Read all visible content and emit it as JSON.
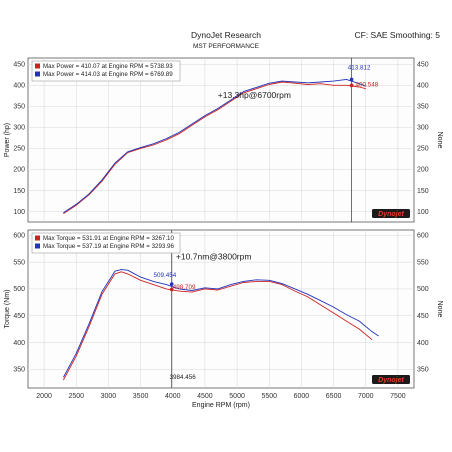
{
  "header": {
    "title": "DynoJet Research",
    "subtitle": "MST PERFORMANCE",
    "right": "CF: SAE Smoothing: 5"
  },
  "chart_data": [
    {
      "type": "line",
      "ylabel": "Power (hp)",
      "ylabel_right": "None",
      "xlim": [
        1750,
        7750
      ],
      "ylim": [
        75,
        465
      ],
      "yticks": [
        100,
        150,
        200,
        250,
        300,
        350,
        400,
        450
      ],
      "legend": [
        {
          "text": "Max Power = 410.07 at Engine RPM = 5738.93",
          "color": "#cc2222"
        },
        {
          "text": "Max Power = 414.03 at Engine RPM = 6769.89",
          "color": "#2233bb"
        }
      ],
      "series": [
        {
          "color": "#cc2222",
          "x": [
            2300,
            2500,
            2700,
            2900,
            3100,
            3300,
            3500,
            3700,
            3900,
            4100,
            4300,
            4500,
            4700,
            4900,
            5100,
            5300,
            5500,
            5700,
            5900,
            6100,
            6300,
            6500,
            6700,
            6900,
            7000
          ],
          "y": [
            95,
            115,
            140,
            172,
            212,
            240,
            250,
            258,
            270,
            285,
            305,
            325,
            342,
            362,
            382,
            392,
            402,
            408,
            405,
            402,
            404,
            400,
            400,
            396,
            392
          ]
        },
        {
          "color": "#2233bb",
          "x": [
            2300,
            2500,
            2700,
            2900,
            3100,
            3300,
            3500,
            3700,
            3900,
            4100,
            4300,
            4500,
            4700,
            4900,
            5100,
            5300,
            5500,
            5700,
            5900,
            6100,
            6300,
            6500,
            6700,
            6900,
            7000
          ],
          "y": [
            97,
            117,
            142,
            175,
            215,
            242,
            252,
            261,
            273,
            288,
            308,
            328,
            345,
            365,
            385,
            395,
            405,
            410,
            408,
            406,
            408,
            410,
            414,
            404,
            398
          ]
        }
      ],
      "annotations": [
        {
          "text": "+13.3hp@6700rpm",
          "x": 4700,
          "y": 370
        },
        {
          "text": "413.812",
          "x": 6720,
          "y": 438,
          "color": "#2233bb"
        },
        {
          "text": "400.548",
          "x": 6840,
          "y": 397,
          "color": "#cc2222"
        }
      ],
      "marker_x": 6780,
      "marker_values": [
        {
          "y": 414,
          "color": "#2233bb"
        },
        {
          "y": 400,
          "color": "#cc2222"
        }
      ],
      "logo": "Dynojet"
    },
    {
      "type": "line",
      "ylabel": "Torque (Nm)",
      "ylabel_right": "None",
      "xlabel": "Engine RPM (rpm)",
      "xlim": [
        1750,
        7750
      ],
      "xticks": [
        2000,
        2500,
        3000,
        3500,
        4000,
        4500,
        5000,
        5500,
        6000,
        6500,
        7000,
        7500
      ],
      "ylim": [
        315,
        610
      ],
      "yticks": [
        350,
        400,
        450,
        500,
        550,
        600
      ],
      "legend": [
        {
          "text": "Max Torque = 531.91 at Engine RPM = 3267.10",
          "color": "#cc2222"
        },
        {
          "text": "Max Torque = 537.19 at Engine RPM = 3293.96",
          "color": "#2233bb"
        }
      ],
      "series": [
        {
          "color": "#cc2222",
          "x": [
            2300,
            2500,
            2700,
            2900,
            3100,
            3200,
            3300,
            3500,
            3700,
            3900,
            4100,
            4300,
            4500,
            4700,
            4900,
            5100,
            5300,
            5500,
            5700,
            5900,
            6100,
            6300,
            6500,
            6700,
            6900,
            7100
          ],
          "y": [
            330,
            375,
            430,
            490,
            528,
            532,
            528,
            516,
            508,
            500,
            496,
            494,
            500,
            498,
            505,
            512,
            514,
            514,
            508,
            496,
            485,
            470,
            455,
            440,
            425,
            405
          ]
        },
        {
          "color": "#2233bb",
          "x": [
            2300,
            2500,
            2700,
            2900,
            3100,
            3200,
            3300,
            3500,
            3700,
            3900,
            4100,
            4300,
            4500,
            4700,
            4900,
            5100,
            5300,
            5500,
            5700,
            5900,
            6100,
            6300,
            6500,
            6700,
            6900,
            7100,
            7200
          ],
          "y": [
            335,
            380,
            435,
            495,
            533,
            536,
            535,
            522,
            514,
            508,
            500,
            497,
            502,
            500,
            508,
            514,
            517,
            516,
            510,
            500,
            490,
            478,
            466,
            452,
            440,
            420,
            412
          ]
        }
      ],
      "annotations": [
        {
          "text": "+10.7nm@3800rpm",
          "x": 4050,
          "y": 555
        },
        {
          "text": "509.454",
          "x": 3700,
          "y": 522,
          "color": "#2233bb"
        },
        {
          "text": "498.709",
          "x": 4000,
          "y": 500,
          "color": "#cc2222"
        },
        {
          "text": "3984.456",
          "x": 3950,
          "y": 332
        }
      ],
      "marker_x": 3984,
      "marker_values": [
        {
          "y": 509,
          "color": "#2233bb"
        },
        {
          "y": 499,
          "color": "#cc2222"
        }
      ],
      "logo": "Dynojet"
    }
  ]
}
